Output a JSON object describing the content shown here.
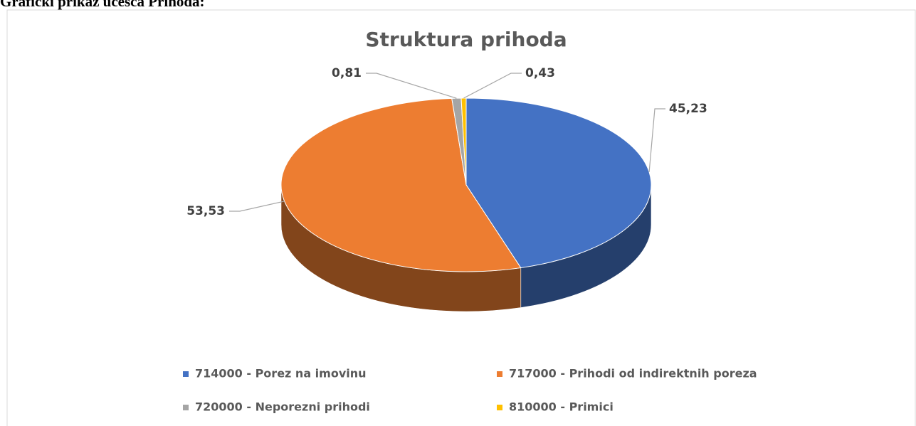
{
  "heading": "Grafički prikaz učešća Prihoda:",
  "chart_data": {
    "type": "pie3d",
    "title": "Struktura prihoda",
    "categories": [
      "714000 - Porez na imovinu",
      "717000 - Prihodi od indirektnih poreza",
      "720000 - Neporezni prihodi",
      "810000 - Primici"
    ],
    "values": [
      45.23,
      53.53,
      0.81,
      0.43
    ],
    "value_labels": [
      "45,23",
      "53,53",
      "0,81",
      "0,43"
    ],
    "colors": [
      "#4472c4",
      "#ed7d31",
      "#a5a5a5",
      "#ffc000"
    ],
    "legend": "bottom"
  }
}
